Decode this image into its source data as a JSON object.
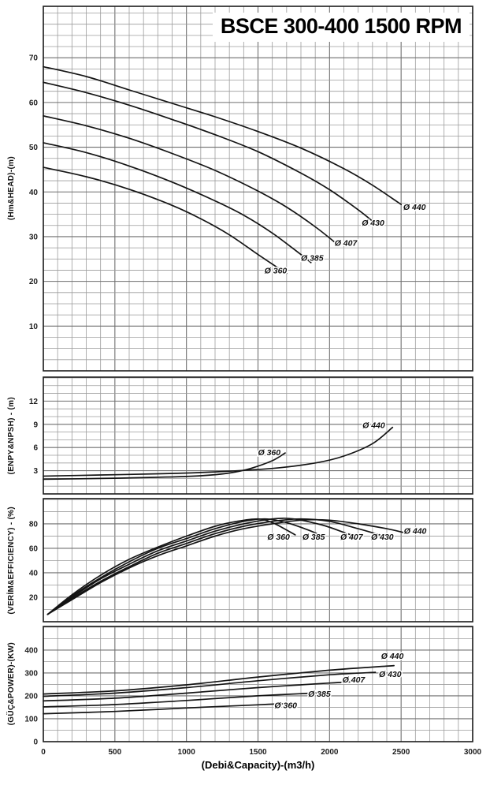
{
  "title": "BSCE 300-400 1500 RPM",
  "xlabel": "(Debi&Capacity)-(m3/h)",
  "colors": {
    "curve": "#141414",
    "grid_minor": "#9c9c9c",
    "grid_major": "#6f6f6f",
    "frame": "#1c1c1c",
    "background": "#ffffff"
  },
  "chart_data": [
    {
      "type": "line",
      "id": "head",
      "ylabel": "(Hm&HEAD)-(m)",
      "xlim": [
        0,
        3000
      ],
      "xticks": [
        0,
        500,
        1000,
        1500,
        2000,
        2500,
        3000
      ],
      "x_minor_step": 100,
      "ylim": [
        0,
        81.5
      ],
      "yticks": [
        10,
        20,
        30,
        40,
        50,
        60,
        70
      ],
      "y_minor_step": 2.5,
      "grid": true,
      "series": [
        {
          "name": "Ø 440",
          "label_at": [
            2515,
            36
          ],
          "points": [
            [
              0,
              68
            ],
            [
              300,
              65.8
            ],
            [
              600,
              62.8
            ],
            [
              900,
              59.8
            ],
            [
              1200,
              56.8
            ],
            [
              1500,
              53.5
            ],
            [
              1800,
              49.8
            ],
            [
              2100,
              45.2
            ],
            [
              2300,
              41.5
            ],
            [
              2500,
              37.2
            ]
          ]
        },
        {
          "name": "Ø 430",
          "label_at": [
            2225,
            32.5
          ],
          "points": [
            [
              0,
              64.5
            ],
            [
              300,
              62.2
            ],
            [
              600,
              59.4
            ],
            [
              900,
              56.2
            ],
            [
              1200,
              52.8
            ],
            [
              1500,
              49
            ],
            [
              1800,
              44.2
            ],
            [
              2000,
              40.5
            ],
            [
              2200,
              36
            ],
            [
              2310,
              33.2
            ]
          ]
        },
        {
          "name": "Ø 407",
          "label_at": [
            2035,
            28
          ],
          "points": [
            [
              0,
              57
            ],
            [
              300,
              54.8
            ],
            [
              600,
              52
            ],
            [
              900,
              48.6
            ],
            [
              1200,
              44.8
            ],
            [
              1500,
              40.2
            ],
            [
              1700,
              36.6
            ],
            [
              1900,
              32.2
            ],
            [
              2050,
              28.4
            ]
          ]
        },
        {
          "name": "Ø 385",
          "label_at": [
            1800,
            24.6
          ],
          "points": [
            [
              0,
              51
            ],
            [
              300,
              48.8
            ],
            [
              600,
              45.8
            ],
            [
              900,
              42.2
            ],
            [
              1200,
              38
            ],
            [
              1400,
              34.8
            ],
            [
              1600,
              30.8
            ],
            [
              1800,
              26
            ],
            [
              1870,
              24.2
            ]
          ]
        },
        {
          "name": "Ø 360",
          "label_at": [
            1545,
            21.8
          ],
          "points": [
            [
              0,
              45.5
            ],
            [
              300,
              43.4
            ],
            [
              600,
              40.6
            ],
            [
              900,
              37
            ],
            [
              1100,
              34
            ],
            [
              1300,
              30.4
            ],
            [
              1500,
              26
            ],
            [
              1650,
              22.8
            ],
            [
              1700,
              21.8
            ]
          ]
        }
      ]
    },
    {
      "type": "line",
      "id": "npsh",
      "ylabel": "(ENPY&NPSH) - (m)",
      "xlim": [
        0,
        3000
      ],
      "xticks": [
        0,
        500,
        1000,
        1500,
        2000,
        2500,
        3000
      ],
      "x_minor_step": 100,
      "ylim": [
        0,
        15.1
      ],
      "yticks": [
        3,
        6,
        9,
        12
      ],
      "y_minor_step": 1,
      "grid": true,
      "series": [
        {
          "name": "Ø 360",
          "label_at": [
            1500,
            5.0
          ],
          "points": [
            [
              0,
              1.9
            ],
            [
              400,
              2.0
            ],
            [
              800,
              2.15
            ],
            [
              1100,
              2.35
            ],
            [
              1300,
              2.7
            ],
            [
              1450,
              3.3
            ],
            [
              1600,
              4.3
            ],
            [
              1690,
              5.3
            ]
          ]
        },
        {
          "name": "Ø 440",
          "label_at": [
            2230,
            8.5
          ],
          "points": [
            [
              0,
              2.3
            ],
            [
              400,
              2.45
            ],
            [
              800,
              2.6
            ],
            [
              1200,
              2.85
            ],
            [
              1600,
              3.3
            ],
            [
              1900,
              4.0
            ],
            [
              2100,
              4.9
            ],
            [
              2300,
              6.5
            ],
            [
              2440,
              8.6
            ]
          ]
        }
      ]
    },
    {
      "type": "line",
      "id": "efficiency",
      "ylabel": "(VERİM&EFFICIENCY) - (%)",
      "xlim": [
        0,
        3000
      ],
      "xticks": [
        0,
        500,
        1000,
        1500,
        2000,
        2500,
        3000
      ],
      "x_minor_step": 100,
      "ylim": [
        0,
        100.6
      ],
      "yticks": [
        20,
        40,
        60,
        80
      ],
      "y_minor_step": 10,
      "grid": true,
      "series": [
        {
          "name": "Ø 360",
          "label_at": [
            1565,
            67
          ],
          "points": [
            [
              30,
              6
            ],
            [
              200,
              22
            ],
            [
              400,
              38
            ],
            [
              600,
              51
            ],
            [
              800,
              61
            ],
            [
              1000,
              70
            ],
            [
              1200,
              78
            ],
            [
              1350,
              82
            ],
            [
              1500,
              84
            ],
            [
              1600,
              81
            ],
            [
              1700,
              75
            ],
            [
              1760,
              71
            ]
          ]
        },
        {
          "name": "Ø 385",
          "label_at": [
            1810,
            67
          ],
          "points": [
            [
              30,
              6
            ],
            [
              200,
              21
            ],
            [
              400,
              36
            ],
            [
              600,
              49
            ],
            [
              800,
              60
            ],
            [
              1000,
              68
            ],
            [
              1200,
              76
            ],
            [
              1400,
              82
            ],
            [
              1550,
              84
            ],
            [
              1700,
              81
            ],
            [
              1850,
              75
            ],
            [
              1950,
              70
            ]
          ]
        },
        {
          "name": "Ø 407",
          "label_at": [
            2075,
            67
          ],
          "points": [
            [
              30,
              6
            ],
            [
              200,
              20
            ],
            [
              400,
              35
            ],
            [
              600,
              47
            ],
            [
              800,
              58
            ],
            [
              1000,
              66
            ],
            [
              1200,
              74
            ],
            [
              1400,
              80
            ],
            [
              1600,
              84
            ],
            [
              1750,
              84
            ],
            [
              1950,
              79
            ],
            [
              2100,
              73
            ],
            [
              2150,
              71
            ]
          ]
        },
        {
          "name": "Ø 430",
          "label_at": [
            2290,
            67
          ],
          "points": [
            [
              30,
              6
            ],
            [
              200,
              19
            ],
            [
              400,
              33
            ],
            [
              600,
              45
            ],
            [
              800,
              56
            ],
            [
              1000,
              64
            ],
            [
              1200,
              72
            ],
            [
              1400,
              78
            ],
            [
              1600,
              82
            ],
            [
              1800,
              84
            ],
            [
              2000,
              82
            ],
            [
              2200,
              76
            ],
            [
              2350,
              71
            ]
          ]
        },
        {
          "name": "Ø 440",
          "label_at": [
            2520,
            72
          ],
          "points": [
            [
              30,
              6
            ],
            [
              200,
              18
            ],
            [
              400,
              32
            ],
            [
              600,
              44
            ],
            [
              800,
              54
            ],
            [
              1000,
              62
            ],
            [
              1200,
              70
            ],
            [
              1400,
              76
            ],
            [
              1600,
              80
            ],
            [
              1800,
              83
            ],
            [
              2000,
              83
            ],
            [
              2200,
              80
            ],
            [
              2400,
              76
            ],
            [
              2550,
              72
            ]
          ]
        }
      ]
    },
    {
      "type": "line",
      "id": "power",
      "ylabel": "(GÜÇ&POWER)-(KW)",
      "xlim": [
        0,
        3000
      ],
      "xticks": [
        0,
        500,
        1000,
        1500,
        2000,
        2500,
        3000
      ],
      "x_minor_step": 100,
      "ylim": [
        0,
        503
      ],
      "yticks": [
        0,
        100,
        200,
        300,
        400
      ],
      "y_minor_step": 50,
      "grid": true,
      "series": [
        {
          "name": "Ø 440",
          "label_at": [
            2360,
            362
          ],
          "points": [
            [
              0,
              208
            ],
            [
              500,
              222
            ],
            [
              1000,
              248
            ],
            [
              1500,
              282
            ],
            [
              2000,
              312
            ],
            [
              2450,
              332
            ]
          ]
        },
        {
          "name": "Ø 430",
          "label_at": [
            2345,
            283
          ],
          "points": [
            [
              0,
              198
            ],
            [
              500,
              212
            ],
            [
              1000,
              236
            ],
            [
              1500,
              266
            ],
            [
              2000,
              292
            ],
            [
              2320,
              303
            ]
          ]
        },
        {
          "name": "Ø 407",
          "label_at": [
            2090,
            258
          ],
          "points": [
            [
              0,
              178
            ],
            [
              500,
              190
            ],
            [
              1000,
              212
            ],
            [
              1500,
              236
            ],
            [
              2000,
              256
            ],
            [
              2150,
              261
            ]
          ]
        },
        {
          "name": "Ø 385",
          "label_at": [
            1850,
            196
          ],
          "points": [
            [
              0,
              152
            ],
            [
              500,
              162
            ],
            [
              1000,
              180
            ],
            [
              1500,
              200
            ],
            [
              1950,
              214
            ]
          ]
        },
        {
          "name": "Ø 360",
          "label_at": [
            1615,
            146
          ],
          "points": [
            [
              0,
              122
            ],
            [
              500,
              132
            ],
            [
              1000,
              147
            ],
            [
              1500,
              161
            ],
            [
              1700,
              166
            ]
          ]
        }
      ]
    }
  ]
}
